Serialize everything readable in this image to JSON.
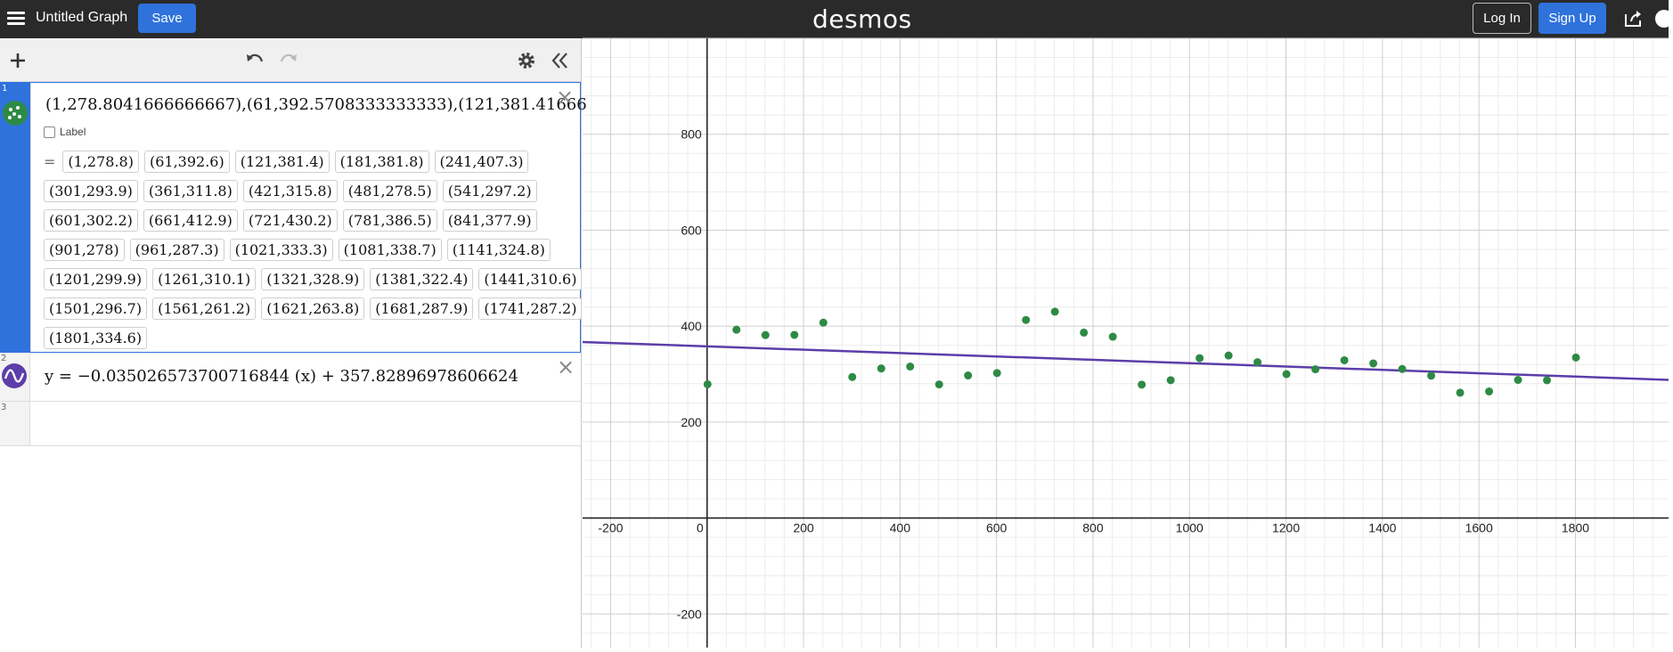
{
  "header": {
    "title": "Untitled Graph",
    "save_label": "Save",
    "logo": "desmos",
    "login_label": "Log In",
    "signup_label": "Sign Up",
    "icons": [
      "hamburger-icon",
      "share-icon",
      "help-icon"
    ]
  },
  "toolbar": {
    "icons": [
      "plus-icon",
      "undo-icon",
      "redo-icon",
      "gear-icon",
      "collapse-icon"
    ]
  },
  "expressions": [
    {
      "index": "1",
      "latex": "(1,278.8041666666667),(61,392.5708333333333),(121,381.41666",
      "label_text": "Label",
      "equals": "=",
      "points": [
        "(1,278.8)",
        "(61,392.6)",
        "(121,381.4)",
        "(181,381.8)",
        "(241,407.3)",
        "(301,293.9)",
        "(361,311.8)",
        "(421,315.8)",
        "(481,278.5)",
        "(541,297.2)",
        "(601,302.2)",
        "(661,412.9)",
        "(721,430.2)",
        "(781,386.5)",
        "(841,377.9)",
        "(901,278)",
        "(961,287.3)",
        "(1021,333.3)",
        "(1081,338.7)",
        "(1141,324.8)",
        "(1201,299.9)",
        "(1261,310.1)",
        "(1321,328.9)",
        "(1381,322.4)",
        "(1441,310.6)",
        "(1501,296.7)",
        "(1561,261.2)",
        "(1621,263.8)",
        "(1681,287.9)",
        "(1741,287.2)",
        "(1801,334.6)"
      ],
      "color": "#2d8a45"
    },
    {
      "index": "2",
      "latex": "y = −0.035026573700716844 (x) + 357.82896978606624",
      "color": "#5b3ea9"
    },
    {
      "index": "3"
    }
  ],
  "chart_data": {
    "type": "scatter",
    "x_ticks": [
      "-200",
      "0",
      "200",
      "400",
      "600",
      "800",
      "1000",
      "1200",
      "1400",
      "1600",
      "1800"
    ],
    "y_ticks": [
      "800",
      "600",
      "400",
      "200",
      "-200"
    ],
    "grid": true,
    "series": [
      {
        "x": [
          1,
          61,
          121,
          181,
          241,
          301,
          361,
          421,
          481,
          541,
          601,
          661,
          721,
          781,
          841,
          901,
          961,
          1021,
          1081,
          1141,
          1201,
          1261,
          1321,
          1381,
          1441,
          1501,
          1561,
          1621,
          1681,
          1741,
          1801
        ],
        "y": [
          278.8,
          392.6,
          381.4,
          381.8,
          407.3,
          293.9,
          311.8,
          315.8,
          278.5,
          297.2,
          302.2,
          412.9,
          430.2,
          386.5,
          377.9,
          278,
          287.3,
          333.3,
          338.7,
          324.8,
          299.9,
          310.1,
          328.9,
          322.4,
          310.6,
          296.7,
          261.2,
          263.8,
          287.9,
          287.2,
          334.6
        ],
        "color": "#2d8a45"
      }
    ],
    "line": {
      "slope": -0.035026573700716844,
      "intercept": 357.82896978606624,
      "color": "#5b3ea9"
    },
    "xlim": [
      -258,
      1993
    ],
    "ylim": [
      -270,
      1000
    ]
  }
}
